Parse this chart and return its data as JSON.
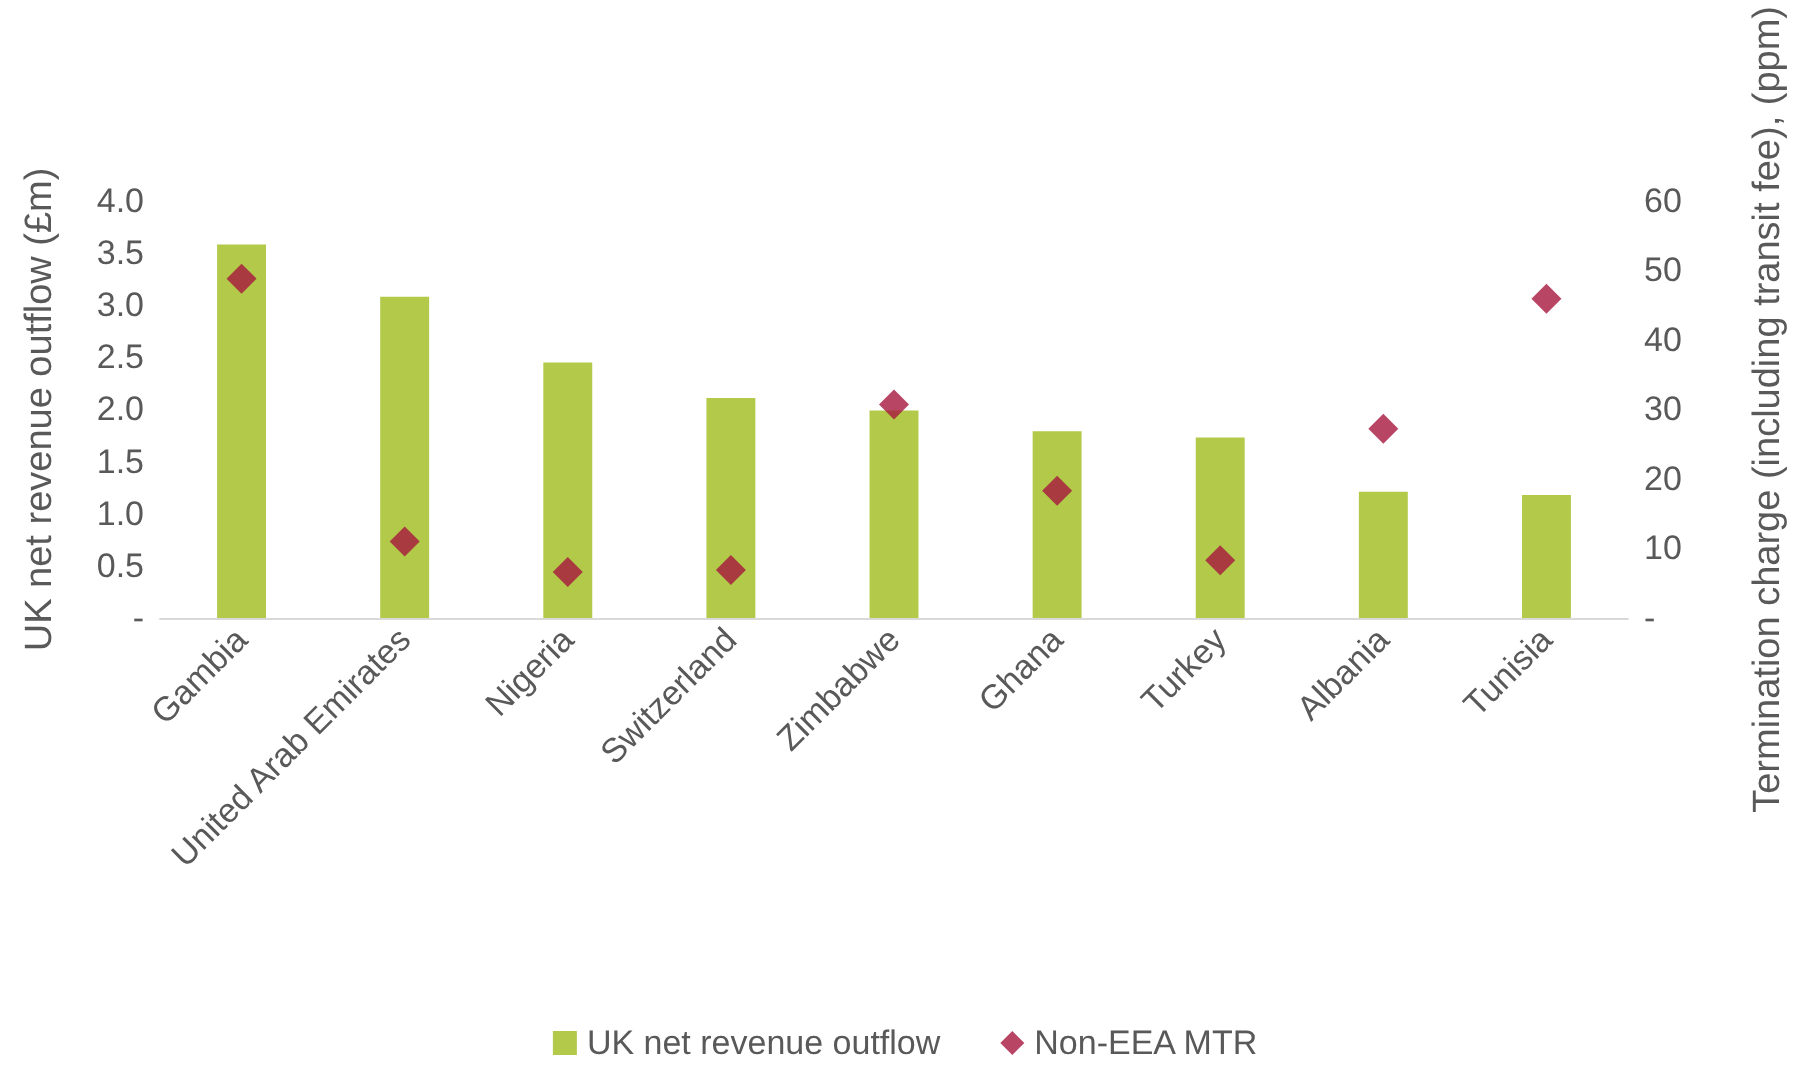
{
  "chart_data": {
    "type": "bar",
    "ylabel": "UK net revenue outflow (£m)",
    "y2label": "Termination charge (including transit fee), (ppm)",
    "categories": [
      "Gambia",
      "United Arab Emirates",
      "Nigeria",
      "Switzerland",
      "Zimbabwe",
      "Ghana",
      "Turkey",
      "Albania",
      "Tunisia"
    ],
    "series": [
      {
        "name": "UK net revenue outflow",
        "color": "#b2c94a",
        "values": [
          3.58,
          3.08,
          2.45,
          2.11,
          1.99,
          1.79,
          1.73,
          1.21,
          1.18
        ]
      },
      {
        "name": "Non-EEA MTR",
        "type": "scatter",
        "axis": "y2",
        "marker": "diamond",
        "color": "#a6173d",
        "values": [
          48.8,
          11.0,
          6.6,
          6.9,
          30.7,
          18.3,
          8.3,
          27.2,
          45.9
        ]
      }
    ],
    "ylim": [
      0,
      4
    ],
    "yticks": [
      {
        "value": 0,
        "label": "-"
      },
      {
        "value": 0.5,
        "label": "0.5"
      },
      {
        "value": 1,
        "label": "1.0"
      },
      {
        "value": 1.5,
        "label": "1.5"
      },
      {
        "value": 2,
        "label": "2.0"
      },
      {
        "value": 2.5,
        "label": "2.5"
      },
      {
        "value": 3,
        "label": "3.0"
      },
      {
        "value": 3.5,
        "label": "3.5"
      },
      {
        "value": 4,
        "label": "4.0"
      }
    ],
    "y2lim": [
      0,
      60
    ],
    "y2ticks": [
      {
        "value": 0,
        "label": "-"
      },
      10,
      20,
      30,
      40,
      50,
      60
    ],
    "legend": "bottom"
  }
}
